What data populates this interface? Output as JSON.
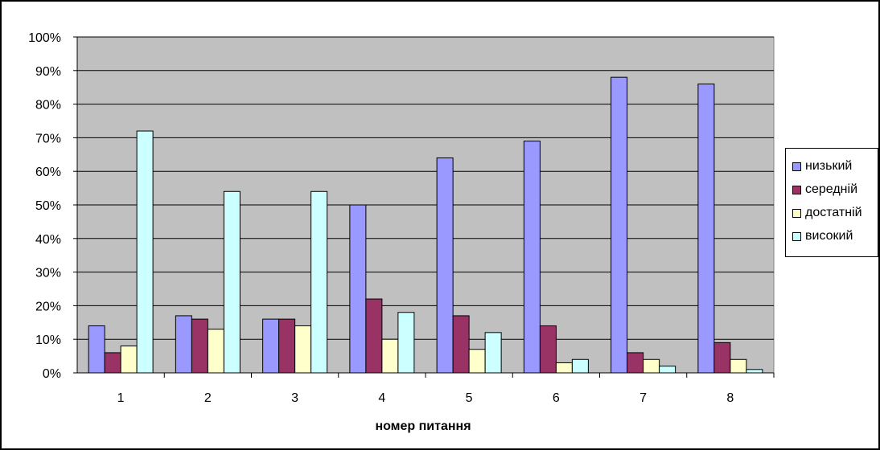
{
  "chart_data": {
    "type": "bar",
    "xlabel": "номер питання",
    "ylabel": "",
    "ylim": [
      0,
      100
    ],
    "y_ticks": [
      "0%",
      "10%",
      "20%",
      "30%",
      "40%",
      "50%",
      "60%",
      "70%",
      "80%",
      "90%",
      "100%"
    ],
    "grid": true,
    "legend_position": "right",
    "plot_background": "#c0c0c0",
    "categories": [
      "1",
      "2",
      "3",
      "4",
      "5",
      "6",
      "7",
      "8"
    ],
    "series": [
      {
        "name": "низький",
        "color": "#9999ff",
        "values": [
          14,
          17,
          16,
          50,
          64,
          69,
          88,
          86
        ]
      },
      {
        "name": "середній",
        "color": "#993366",
        "values": [
          6,
          16,
          16,
          22,
          17,
          14,
          6,
          9
        ]
      },
      {
        "name": "достатній",
        "color": "#ffffcc",
        "values": [
          8,
          13,
          14,
          10,
          7,
          3,
          4,
          4
        ]
      },
      {
        "name": "високий",
        "color": "#ccffff",
        "values": [
          72,
          54,
          54,
          18,
          12,
          4,
          2,
          1
        ]
      }
    ]
  }
}
